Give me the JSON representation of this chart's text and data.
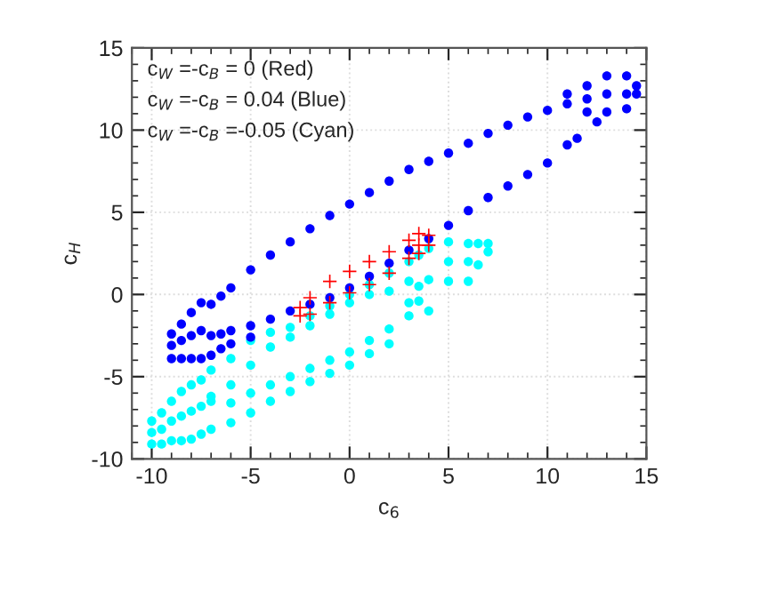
{
  "chart_data": {
    "type": "scatter",
    "xlabel": "c$_{6}$",
    "ylabel": "c$_{H}$",
    "xlim": [
      -11,
      15
    ],
    "ylim": [
      -10,
      15
    ],
    "xticks": [
      -10,
      -5,
      0,
      5,
      10,
      15
    ],
    "yticks": [
      -10,
      -5,
      0,
      5,
      10,
      15
    ],
    "grid": true,
    "legend": false,
    "annotations": [
      "c$_{W}$ =-c$_{B}$ = 0 (Red)",
      "c$_{W}$ =-c$_{B}$ = 0.04 (Blue)",
      "c$_{W}$ =-c$_{B}$ =-0.05 (Cyan)"
    ],
    "series": [
      {
        "color": "#00ffff",
        "marker": "circle",
        "x": [
          -10,
          -10,
          -10,
          -9.5,
          -9.5,
          -9.5,
          -9,
          -9,
          -9,
          -8.5,
          -8.5,
          -8.5,
          -8,
          -8,
          -8,
          -7.5,
          -7.5,
          -7.5,
          -7,
          -7,
          -7,
          -7,
          -6,
          -6,
          -6,
          -6,
          -5,
          -5,
          -5,
          -5,
          -4,
          -4,
          -4,
          -4,
          -3,
          -3,
          -3,
          -3,
          -2,
          -2,
          -2,
          -2,
          -1,
          -1,
          -1,
          -1,
          0,
          0,
          0,
          0,
          1,
          1,
          1,
          1,
          2,
          2,
          2,
          2,
          3,
          3,
          3,
          3,
          3.5,
          3.5,
          3.5,
          4,
          4,
          4,
          5,
          5,
          5,
          6,
          6,
          6,
          6.5,
          6.5,
          7,
          7
        ],
        "values": [
          -7.7,
          -8.4,
          -9.1,
          -7.2,
          -8.2,
          -9.1,
          -6.5,
          -7.7,
          -8.9,
          -5.9,
          -7.4,
          -8.9,
          -5.5,
          -7.1,
          -8.8,
          -5.2,
          -6.8,
          -8.5,
          -4.6,
          -6.2,
          -6.5,
          -8.2,
          -3.9,
          -5.5,
          -6.6,
          -7.8,
          -2.8,
          -4.3,
          -6.0,
          -7.2,
          -2.3,
          -3.2,
          -5.5,
          -6.5,
          -2.0,
          -2.6,
          -5.0,
          -5.9,
          -1.3,
          -1.9,
          -4.5,
          -5.3,
          -0.7,
          -1.2,
          -4.0,
          -4.8,
          0.0,
          -0.5,
          -3.5,
          -4.3,
          0.6,
          0.0,
          -2.8,
          -3.6,
          1.3,
          0.2,
          -2.1,
          -3.0,
          2.0,
          0.8,
          -0.5,
          -1.3,
          2.4,
          0.5,
          -0.4,
          2.8,
          0.9,
          -1.0,
          3.2,
          2.0,
          0.8,
          3.1,
          2.0,
          0.8,
          3.1,
          1.8,
          3.1,
          2.6
        ]
      },
      {
        "color": "#ff0000",
        "marker": "cross",
        "x": [
          -2.5,
          -2.5,
          -2,
          -2,
          -1,
          -1,
          0,
          0,
          1,
          1,
          2,
          2,
          3,
          3,
          3.5,
          3.5,
          3.5,
          4,
          4
        ],
        "values": [
          -0.8,
          -1.3,
          -0.2,
          -1.2,
          0.8,
          -0.5,
          1.4,
          0.1,
          2.0,
          0.6,
          2.6,
          1.3,
          3.3,
          2.2,
          3.7,
          3.0,
          2.5,
          3.6,
          3.0
        ]
      },
      {
        "color": "#0000ff",
        "marker": "circle",
        "x": [
          -9,
          -9,
          -9,
          -8.5,
          -8.5,
          -8.5,
          -8,
          -8,
          -8,
          -7.5,
          -7.5,
          -7.5,
          -7,
          -6.5,
          -6,
          -5,
          -4,
          -3,
          -2,
          -1,
          0,
          1,
          2,
          3,
          4,
          5,
          6,
          7,
          8,
          9,
          10,
          11,
          11,
          12,
          12,
          12,
          13,
          13,
          13,
          14,
          14,
          14,
          14.5,
          14.5,
          12.5,
          11.5,
          11,
          10,
          9,
          8,
          7,
          6,
          5,
          4,
          3,
          2,
          1,
          0,
          -1,
          -2,
          -3,
          -4,
          -5,
          -5,
          -6,
          -6,
          -6.5,
          -6.5,
          -7,
          -7
        ],
        "values": [
          -2.4,
          -3.1,
          -3.9,
          -1.8,
          -2.8,
          -3.9,
          -1.1,
          -2.5,
          -3.9,
          -0.5,
          -2.2,
          -3.9,
          -0.6,
          -0.1,
          0.4,
          1.5,
          2.4,
          3.2,
          4.0,
          4.8,
          5.5,
          6.2,
          6.9,
          7.6,
          8.1,
          8.6,
          9.2,
          9.8,
          10.3,
          10.8,
          11.2,
          12.2,
          11.6,
          12.7,
          11.9,
          11.1,
          13.3,
          12.2,
          11.1,
          13.3,
          12.2,
          11.3,
          12.7,
          12.2,
          10.5,
          9.5,
          9.1,
          8.0,
          7.3,
          6.6,
          5.9,
          5.1,
          4.2,
          3.4,
          2.7,
          1.9,
          1.1,
          0.4,
          -0.2,
          -0.6,
          -1.0,
          -1.5,
          -1.9,
          -2.6,
          -2.2,
          -3.0,
          -2.4,
          -3.3,
          -2.5,
          -3.7
        ]
      }
    ]
  }
}
